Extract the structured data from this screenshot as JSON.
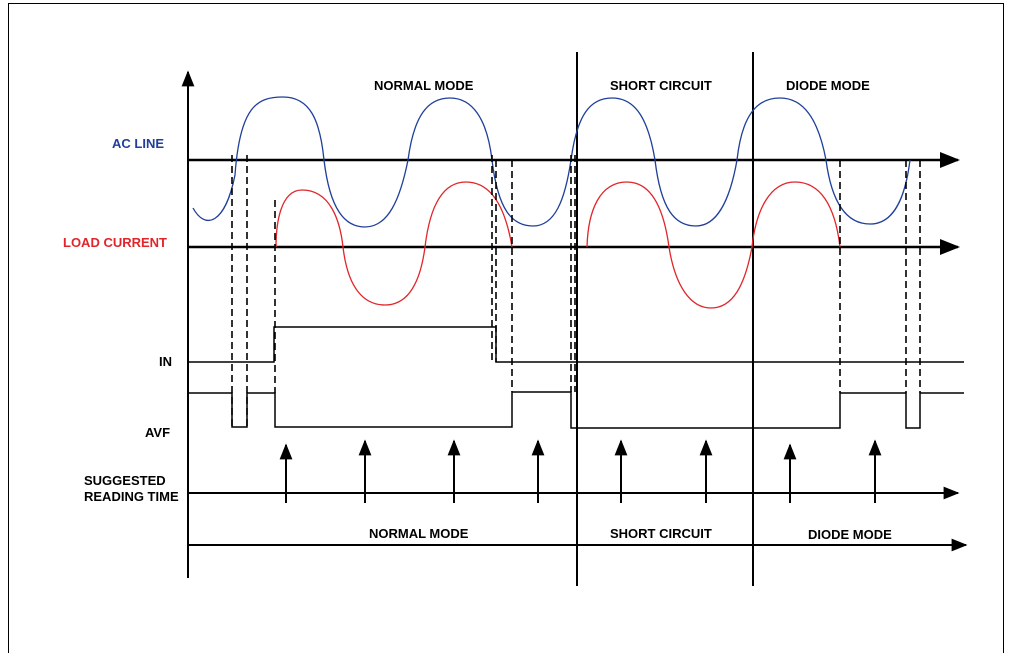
{
  "signals": {
    "ac_line": "AC LINE",
    "load_current": "LOAD CURRENT",
    "in": "IN",
    "avf": "AVF",
    "suggested_1": "SUGGESTED",
    "suggested_2": "READING TIME"
  },
  "modes_top": {
    "normal": "NORMAL MODE",
    "short": "SHORT CIRCUIT",
    "diode": "DIODE MODE"
  },
  "modes_bottom": {
    "normal": "NORMAL MODE",
    "short": "SHORT CIRCUIT",
    "diode": "DIODE MODE"
  },
  "colors": {
    "ac_line": "#1f3f9a",
    "load_current": "#e0262a",
    "axis": "#000000"
  }
}
